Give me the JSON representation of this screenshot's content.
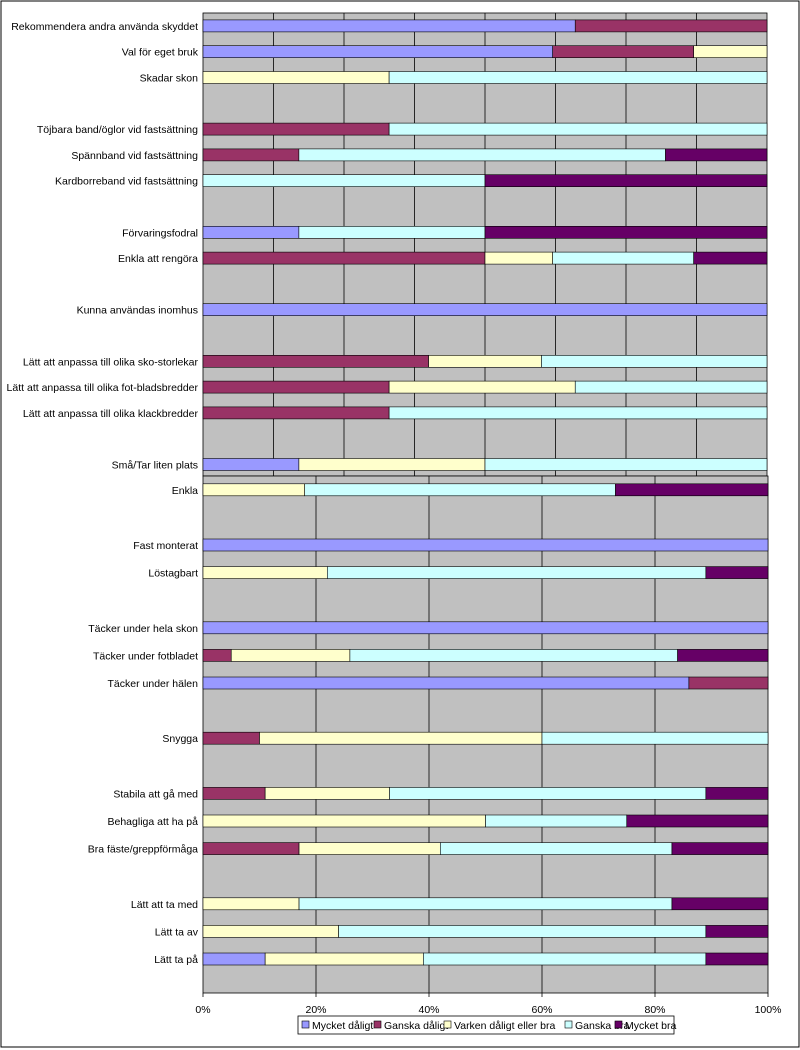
{
  "chart_data": [
    {
      "type": "bar",
      "orientation": "horizontal",
      "stacked": "percent",
      "categories": [
        "Rekommendera andra använda skyddet",
        "Val för eget bruk",
        "Skadar skon",
        "",
        "Töjbara band/öglor vid fastsättning",
        "Spännband vid fastsättning",
        "Kardborreband vid fastsättning",
        "",
        "Förvaringsfodral",
        "Enkla att rengöra",
        "",
        "Kunna användas inomhus",
        "",
        "Lätt att anpassa till olika sko-storlekar",
        "Lätt att anpassa till olika fot-bladsbredder",
        "Lätt att anpassa till olika klackbredder",
        "",
        "Små/Tar liten plats"
      ],
      "series": [
        {
          "name": "Mycket dåligt",
          "color": "#9999ff",
          "values": [
            66,
            62,
            0,
            0,
            0,
            0,
            0,
            0,
            17,
            0,
            0,
            100,
            0,
            0,
            0,
            0,
            0,
            17
          ]
        },
        {
          "name": "Ganska dåligt",
          "color": "#993366",
          "values": [
            34,
            25,
            0,
            0,
            33,
            17,
            0,
            0,
            0,
            50,
            0,
            0,
            0,
            40,
            33,
            33,
            0,
            0
          ]
        },
        {
          "name": "Varken dåligt eller bra",
          "color": "#ffffcc",
          "values": [
            0,
            13,
            33,
            0,
            0,
            0,
            0,
            0,
            0,
            12,
            0,
            0,
            0,
            20,
            33,
            0,
            0,
            33
          ]
        },
        {
          "name": "Ganska bra",
          "color": "#ccffff",
          "values": [
            0,
            0,
            67,
            0,
            67,
            65,
            50,
            0,
            33,
            25,
            0,
            0,
            0,
            40,
            34,
            67,
            0,
            50
          ]
        },
        {
          "name": "Mycket bra",
          "color": "#660066",
          "values": [
            0,
            0,
            0,
            0,
            0,
            18,
            50,
            0,
            50,
            13,
            0,
            0,
            0,
            0,
            0,
            0,
            0,
            0
          ]
        }
      ]
    },
    {
      "type": "bar",
      "orientation": "horizontal",
      "stacked": "percent",
      "categories": [
        "Enkla",
        "",
        "Fast monterat",
        "Löstagbart",
        "",
        "Täcker under hela skon",
        "Täcker under fotbladet",
        "Täcker under hälen",
        "",
        "Snygga",
        "",
        "Stabila att gå med",
        "Behagliga att ha på",
        "Bra fäste/greppförmåga",
        "",
        "Lätt att ta med",
        "Lätt ta av",
        "Lätt ta på"
      ],
      "xticks": [
        "0%",
        "20%",
        "40%",
        "60%",
        "80%",
        "100%"
      ],
      "xlim": [
        0,
        100
      ],
      "legend": [
        "Mycket dåligt",
        "Ganska dåligt",
        "Varken dåligt eller bra",
        "Ganska bra",
        "Mycket bra"
      ],
      "legend_position": "bottom",
      "series": [
        {
          "name": "Mycket dåligt",
          "color": "#9999ff",
          "values": [
            0,
            0,
            100,
            0,
            0,
            100,
            0,
            86,
            0,
            0,
            0,
            0,
            0,
            0,
            0,
            0,
            0,
            11
          ]
        },
        {
          "name": "Ganska dåligt",
          "color": "#993366",
          "values": [
            0,
            0,
            0,
            0,
            0,
            0,
            5,
            14,
            0,
            10,
            0,
            11,
            0,
            17,
            0,
            0,
            0,
            0
          ]
        },
        {
          "name": "Varken dåligt eller bra",
          "color": "#ffffcc",
          "values": [
            18,
            0,
            0,
            22,
            0,
            0,
            21,
            0,
            0,
            50,
            0,
            22,
            50,
            25,
            0,
            17,
            24,
            28
          ]
        },
        {
          "name": "Ganska bra",
          "color": "#ccffff",
          "values": [
            55,
            0,
            0,
            67,
            0,
            0,
            58,
            0,
            0,
            40,
            0,
            56,
            25,
            41,
            0,
            66,
            65,
            50
          ]
        },
        {
          "name": "Mycket bra",
          "color": "#660066",
          "values": [
            27,
            0,
            0,
            11,
            0,
            0,
            16,
            0,
            0,
            0,
            0,
            11,
            25,
            17,
            0,
            17,
            11,
            11
          ]
        }
      ]
    }
  ]
}
